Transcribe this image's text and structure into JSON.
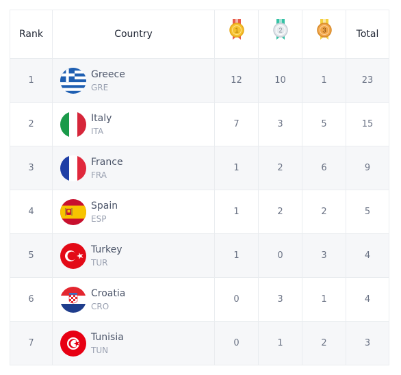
{
  "header": {
    "rank": "Rank",
    "country": "Country",
    "gold_numeral": "1",
    "silver_numeral": "2",
    "bronze_numeral": "3",
    "total": "Total"
  },
  "colors": {
    "gold": "#f5c230",
    "silver": "#d7dde3",
    "bronze": "#f0a64a",
    "gold_ribbon": "#e85b4b",
    "silver_ribbon": "#35c2a5",
    "bronze_ribbon": "#f4cf3e"
  },
  "rows": [
    {
      "rank": "1",
      "name": "Greece",
      "code": "GRE",
      "flag": "greece-flag",
      "gold": "12",
      "silver": "10",
      "bronze": "1",
      "total": "23"
    },
    {
      "rank": "2",
      "name": "Italy",
      "code": "ITA",
      "flag": "italy-flag",
      "gold": "7",
      "silver": "3",
      "bronze": "5",
      "total": "15"
    },
    {
      "rank": "3",
      "name": "France",
      "code": "FRA",
      "flag": "france-flag",
      "gold": "1",
      "silver": "2",
      "bronze": "6",
      "total": "9"
    },
    {
      "rank": "4",
      "name": "Spain",
      "code": "ESP",
      "flag": "spain-flag",
      "gold": "1",
      "silver": "2",
      "bronze": "2",
      "total": "5"
    },
    {
      "rank": "5",
      "name": "Turkey",
      "code": "TUR",
      "flag": "turkey-flag",
      "gold": "1",
      "silver": "0",
      "bronze": "3",
      "total": "4"
    },
    {
      "rank": "6",
      "name": "Croatia",
      "code": "CRO",
      "flag": "croatia-flag",
      "gold": "0",
      "silver": "3",
      "bronze": "1",
      "total": "4"
    },
    {
      "rank": "7",
      "name": "Tunisia",
      "code": "TUN",
      "flag": "tunisia-flag",
      "gold": "0",
      "silver": "1",
      "bronze": "2",
      "total": "3"
    }
  ]
}
